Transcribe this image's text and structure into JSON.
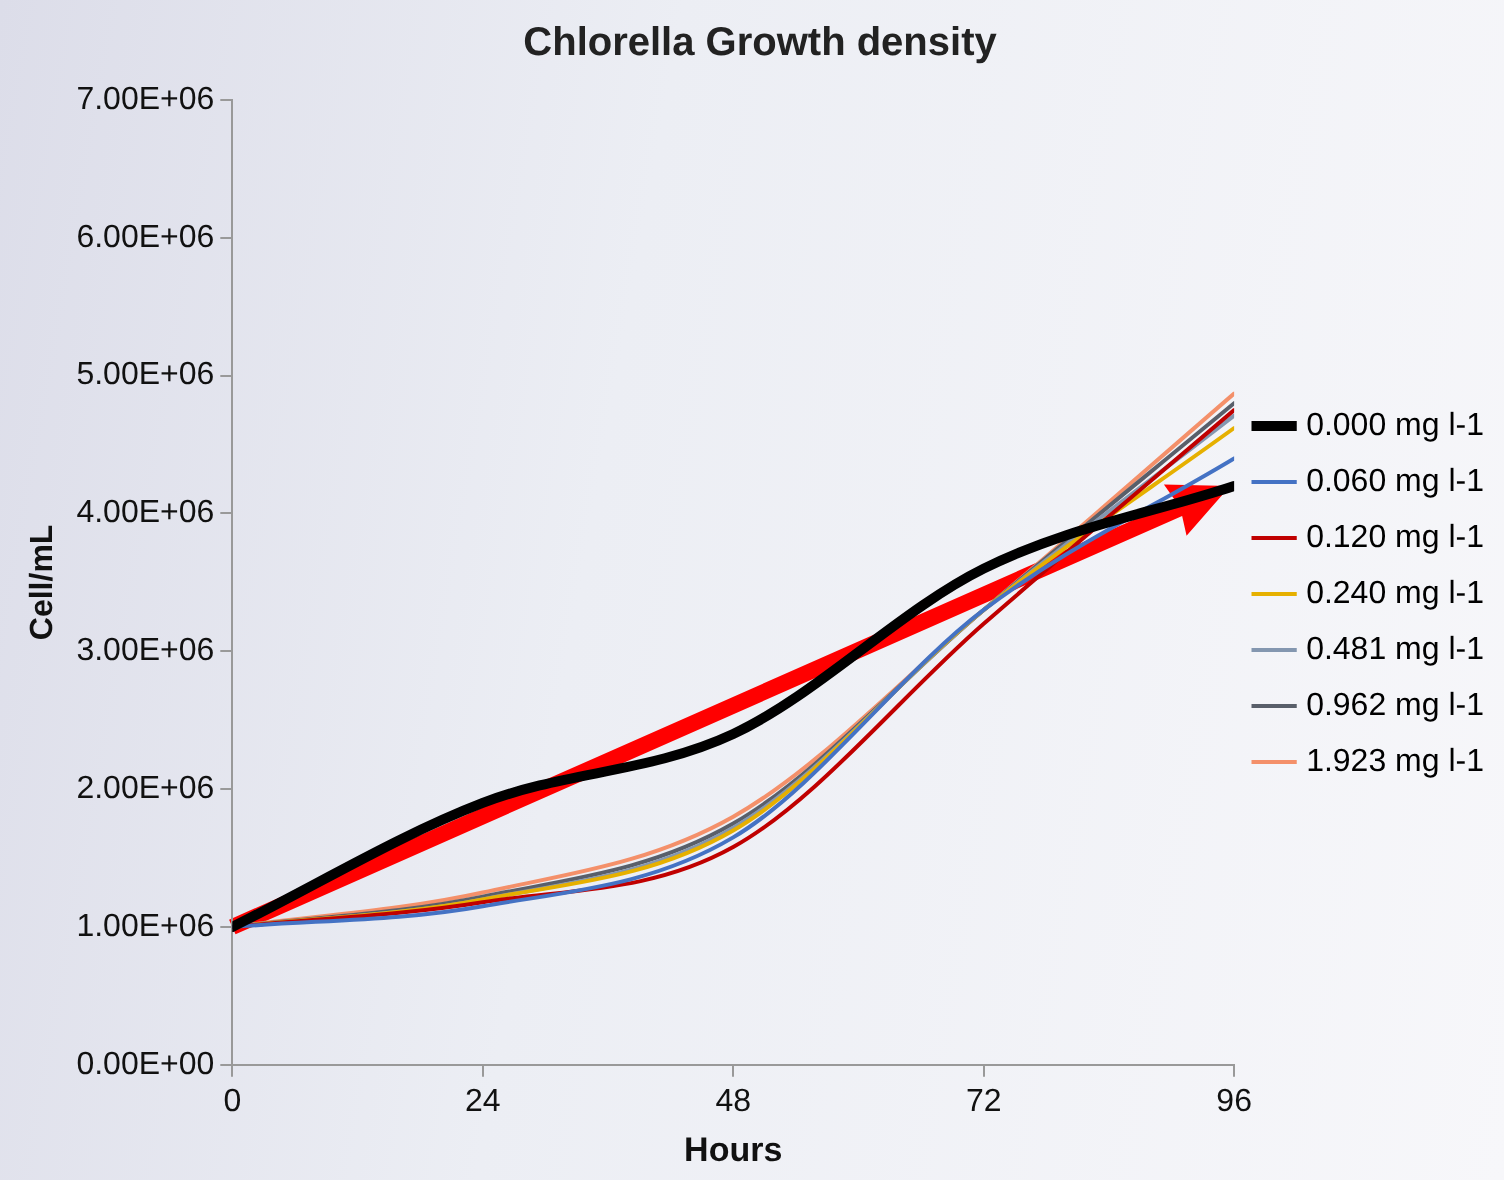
{
  "chart_data": {
    "type": "line",
    "title": "Chlorella Growth density",
    "xlabel": "Hours",
    "ylabel": "Cell/mL",
    "x": [
      0,
      24,
      48,
      72,
      96
    ],
    "series": [
      {
        "name": "0.000 mg l-1",
        "color": "#000000",
        "values": [
          1000000,
          1900000,
          2400000,
          3600000,
          4200000
        ]
      },
      {
        "name": "0.060 mg l-1",
        "color": "#4472c4",
        "values": [
          1000000,
          1150000,
          1650000,
          3300000,
          4400000
        ]
      },
      {
        "name": "0.120 mg l-1",
        "color": "#c00000",
        "values": [
          1000000,
          1180000,
          1580000,
          3200000,
          4750000
        ]
      },
      {
        "name": "0.240 mg l-1",
        "color": "#e6b000",
        "values": [
          1000000,
          1200000,
          1700000,
          3300000,
          4620000
        ]
      },
      {
        "name": "0.481 mg l-1",
        "color": "#8497b0",
        "values": [
          1000000,
          1200000,
          1720000,
          3300000,
          4710000
        ]
      },
      {
        "name": "0.962 mg l-1",
        "color": "#595f6a",
        "values": [
          1000000,
          1220000,
          1750000,
          3300000,
          4800000
        ]
      },
      {
        "name": "1.923 mg l-1",
        "color": "#f4906a",
        "values": [
          1000000,
          1250000,
          1800000,
          3300000,
          4870000
        ]
      }
    ],
    "xlim": [
      0,
      96
    ],
    "xticks": [
      0,
      24,
      48,
      72,
      96
    ],
    "ylim": [
      0,
      7000000
    ],
    "yticks": [
      {
        "value": 0,
        "label": "0.00E+00"
      },
      {
        "value": 1000000,
        "label": "1.00E+06"
      },
      {
        "value": 2000000,
        "label": "2.00E+06"
      },
      {
        "value": 3000000,
        "label": "3.00E+06"
      },
      {
        "value": 4000000,
        "label": "4.00E+06"
      },
      {
        "value": 5000000,
        "label": "5.00E+06"
      },
      {
        "value": 6000000,
        "label": "6.00E+06"
      },
      {
        "value": 7000000,
        "label": "7.00E+06"
      }
    ],
    "grid": false,
    "legend": "right",
    "marker": "none"
  }
}
